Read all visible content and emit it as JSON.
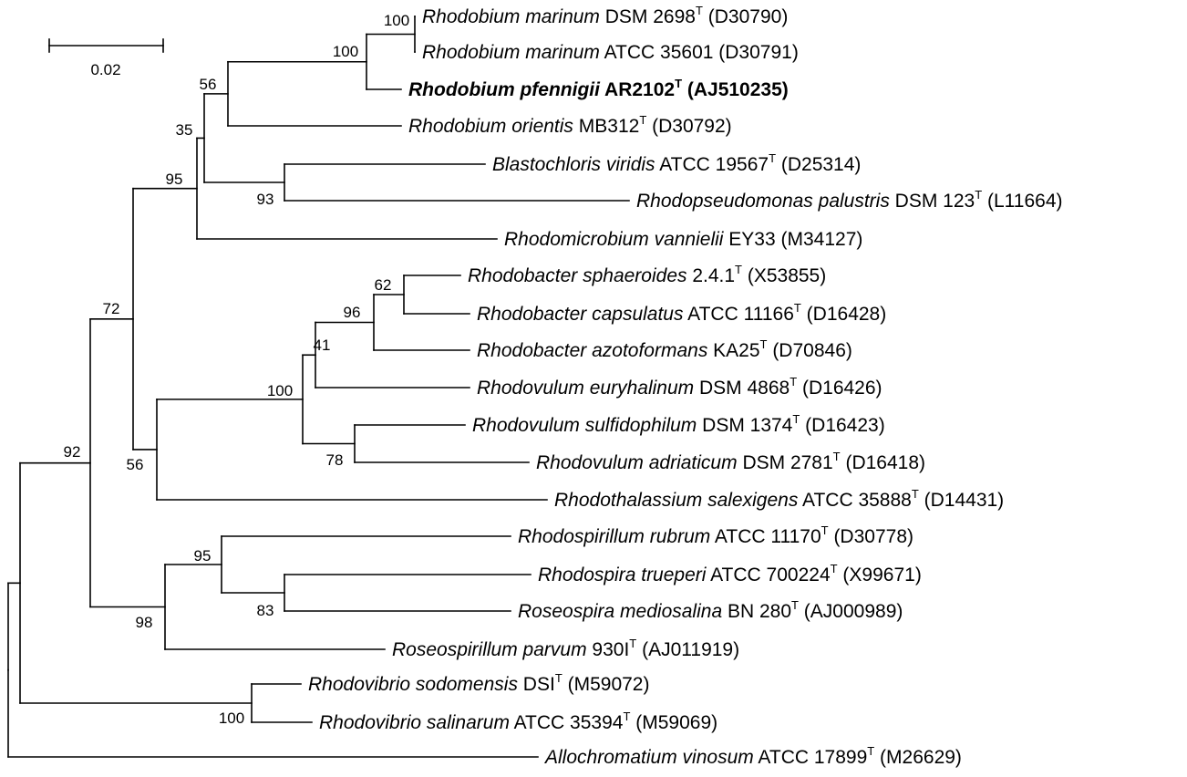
{
  "scale_bar": {
    "label": "0.02"
  },
  "taxa": [
    {
      "id": "t1",
      "genus_species": "Rhodobium marinum",
      "strain": "DSM 2698",
      "type_strain": true,
      "accession": "(D30790)"
    },
    {
      "id": "t2",
      "genus_species": "Rhodobium marinum",
      "strain": "ATCC 35601",
      "type_strain": false,
      "accession": "(D30791)"
    },
    {
      "id": "t3",
      "genus_species": "Rhodobium pfennigii",
      "strain": "AR2102",
      "type_strain": true,
      "accession": "(AJ510235)",
      "bold": true
    },
    {
      "id": "t4",
      "genus_species": "Rhodobium orientis",
      "strain": "MB312",
      "type_strain": true,
      "accession": "(D30792)"
    },
    {
      "id": "t5",
      "genus_species": "Blastochloris viridis",
      "strain": "ATCC 19567",
      "type_strain": true,
      "accession": "(D25314)"
    },
    {
      "id": "t6",
      "genus_species": "Rhodopseudomonas palustris",
      "strain": "DSM 123",
      "type_strain": true,
      "accession": "(L11664)"
    },
    {
      "id": "t7",
      "genus_species": "Rhodomicrobium vannielii",
      "strain": "EY33",
      "type_strain": false,
      "accession": "(M34127)"
    },
    {
      "id": "t8",
      "genus_species": "Rhodobacter sphaeroides",
      "strain": "2.4.1",
      "type_strain": true,
      "accession": "(X53855)"
    },
    {
      "id": "t9",
      "genus_species": "Rhodobacter capsulatus",
      "strain": "ATCC 11166",
      "type_strain": true,
      "accession": "(D16428)"
    },
    {
      "id": "t10",
      "genus_species": "Rhodobacter azotoformans",
      "strain": "KA25",
      "type_strain": true,
      "accession": "(D70846)"
    },
    {
      "id": "t11",
      "genus_species": "Rhodovulum euryhalinum",
      "strain": "DSM 4868",
      "type_strain": true,
      "accession": "(D16426)"
    },
    {
      "id": "t12",
      "genus_species": "Rhodovulum sulfidophilum",
      "strain": "DSM 1374",
      "type_strain": true,
      "accession": "(D16423)"
    },
    {
      "id": "t13",
      "genus_species": "Rhodovulum adriaticum",
      "strain": "DSM 2781",
      "type_strain": true,
      "accession": "(D16418)"
    },
    {
      "id": "t14",
      "genus_species": "Rhodothalassium salexigens",
      "strain": "ATCC 35888",
      "type_strain": true,
      "accession": "(D14431)"
    },
    {
      "id": "t15",
      "genus_species": "Rhodospirillum rubrum",
      "strain": "ATCC 11170",
      "type_strain": true,
      "accession": "(D30778)"
    },
    {
      "id": "t16",
      "genus_species": "Rhodospira trueperi",
      "strain": "ATCC 700224",
      "type_strain": true,
      "accession": "(X99671)"
    },
    {
      "id": "t17",
      "genus_species": "Roseospira mediosalina",
      "strain": "BN 280",
      "type_strain": true,
      "accession": "(AJ000989)"
    },
    {
      "id": "t18",
      "genus_species": "Roseospirillum parvum",
      "strain": "930I",
      "type_strain": true,
      "accession": "(AJ011919)"
    },
    {
      "id": "t19",
      "genus_species": "Rhodovibrio sodomensis",
      "strain": "DSI",
      "type_strain": true,
      "accession": "(M59072)"
    },
    {
      "id": "t20",
      "genus_species": "Rhodovibrio salinarum",
      "strain": "ATCC 35394",
      "type_strain": true,
      "accession": "(M59069)"
    },
    {
      "id": "t21",
      "genus_species": "Allochromatium vinosum",
      "strain": "ATCC 17899",
      "type_strain": true,
      "accession": "(M26629)"
    }
  ],
  "bootstrap": [
    {
      "id": "n_rmar",
      "value": "100"
    },
    {
      "id": "n_rmarpf",
      "value": "100"
    },
    {
      "id": "n_rhodob",
      "value": "56"
    },
    {
      "id": "n_rb_bp",
      "value": "35"
    },
    {
      "id": "n_bv_rp",
      "value": "93"
    },
    {
      "id": "n_upper",
      "value": "95"
    },
    {
      "id": "n_rs_rc",
      "value": "62"
    },
    {
      "id": "n_rbac",
      "value": "96"
    },
    {
      "id": "n_rbac_re",
      "value": "41"
    },
    {
      "id": "n_rs_ra",
      "value": "78"
    },
    {
      "id": "n_rvul",
      "value": "100"
    },
    {
      "id": "n_rvul_rt",
      "value": "56"
    },
    {
      "id": "n_alpha",
      "value": "72"
    },
    {
      "id": "n_rt_rm",
      "value": "83"
    },
    {
      "id": "n_rr_sp",
      "value": "95"
    },
    {
      "id": "n_spiri",
      "value": "98"
    },
    {
      "id": "n_ingroup",
      "value": "92"
    },
    {
      "id": "n_rvib",
      "value": "100"
    }
  ]
}
